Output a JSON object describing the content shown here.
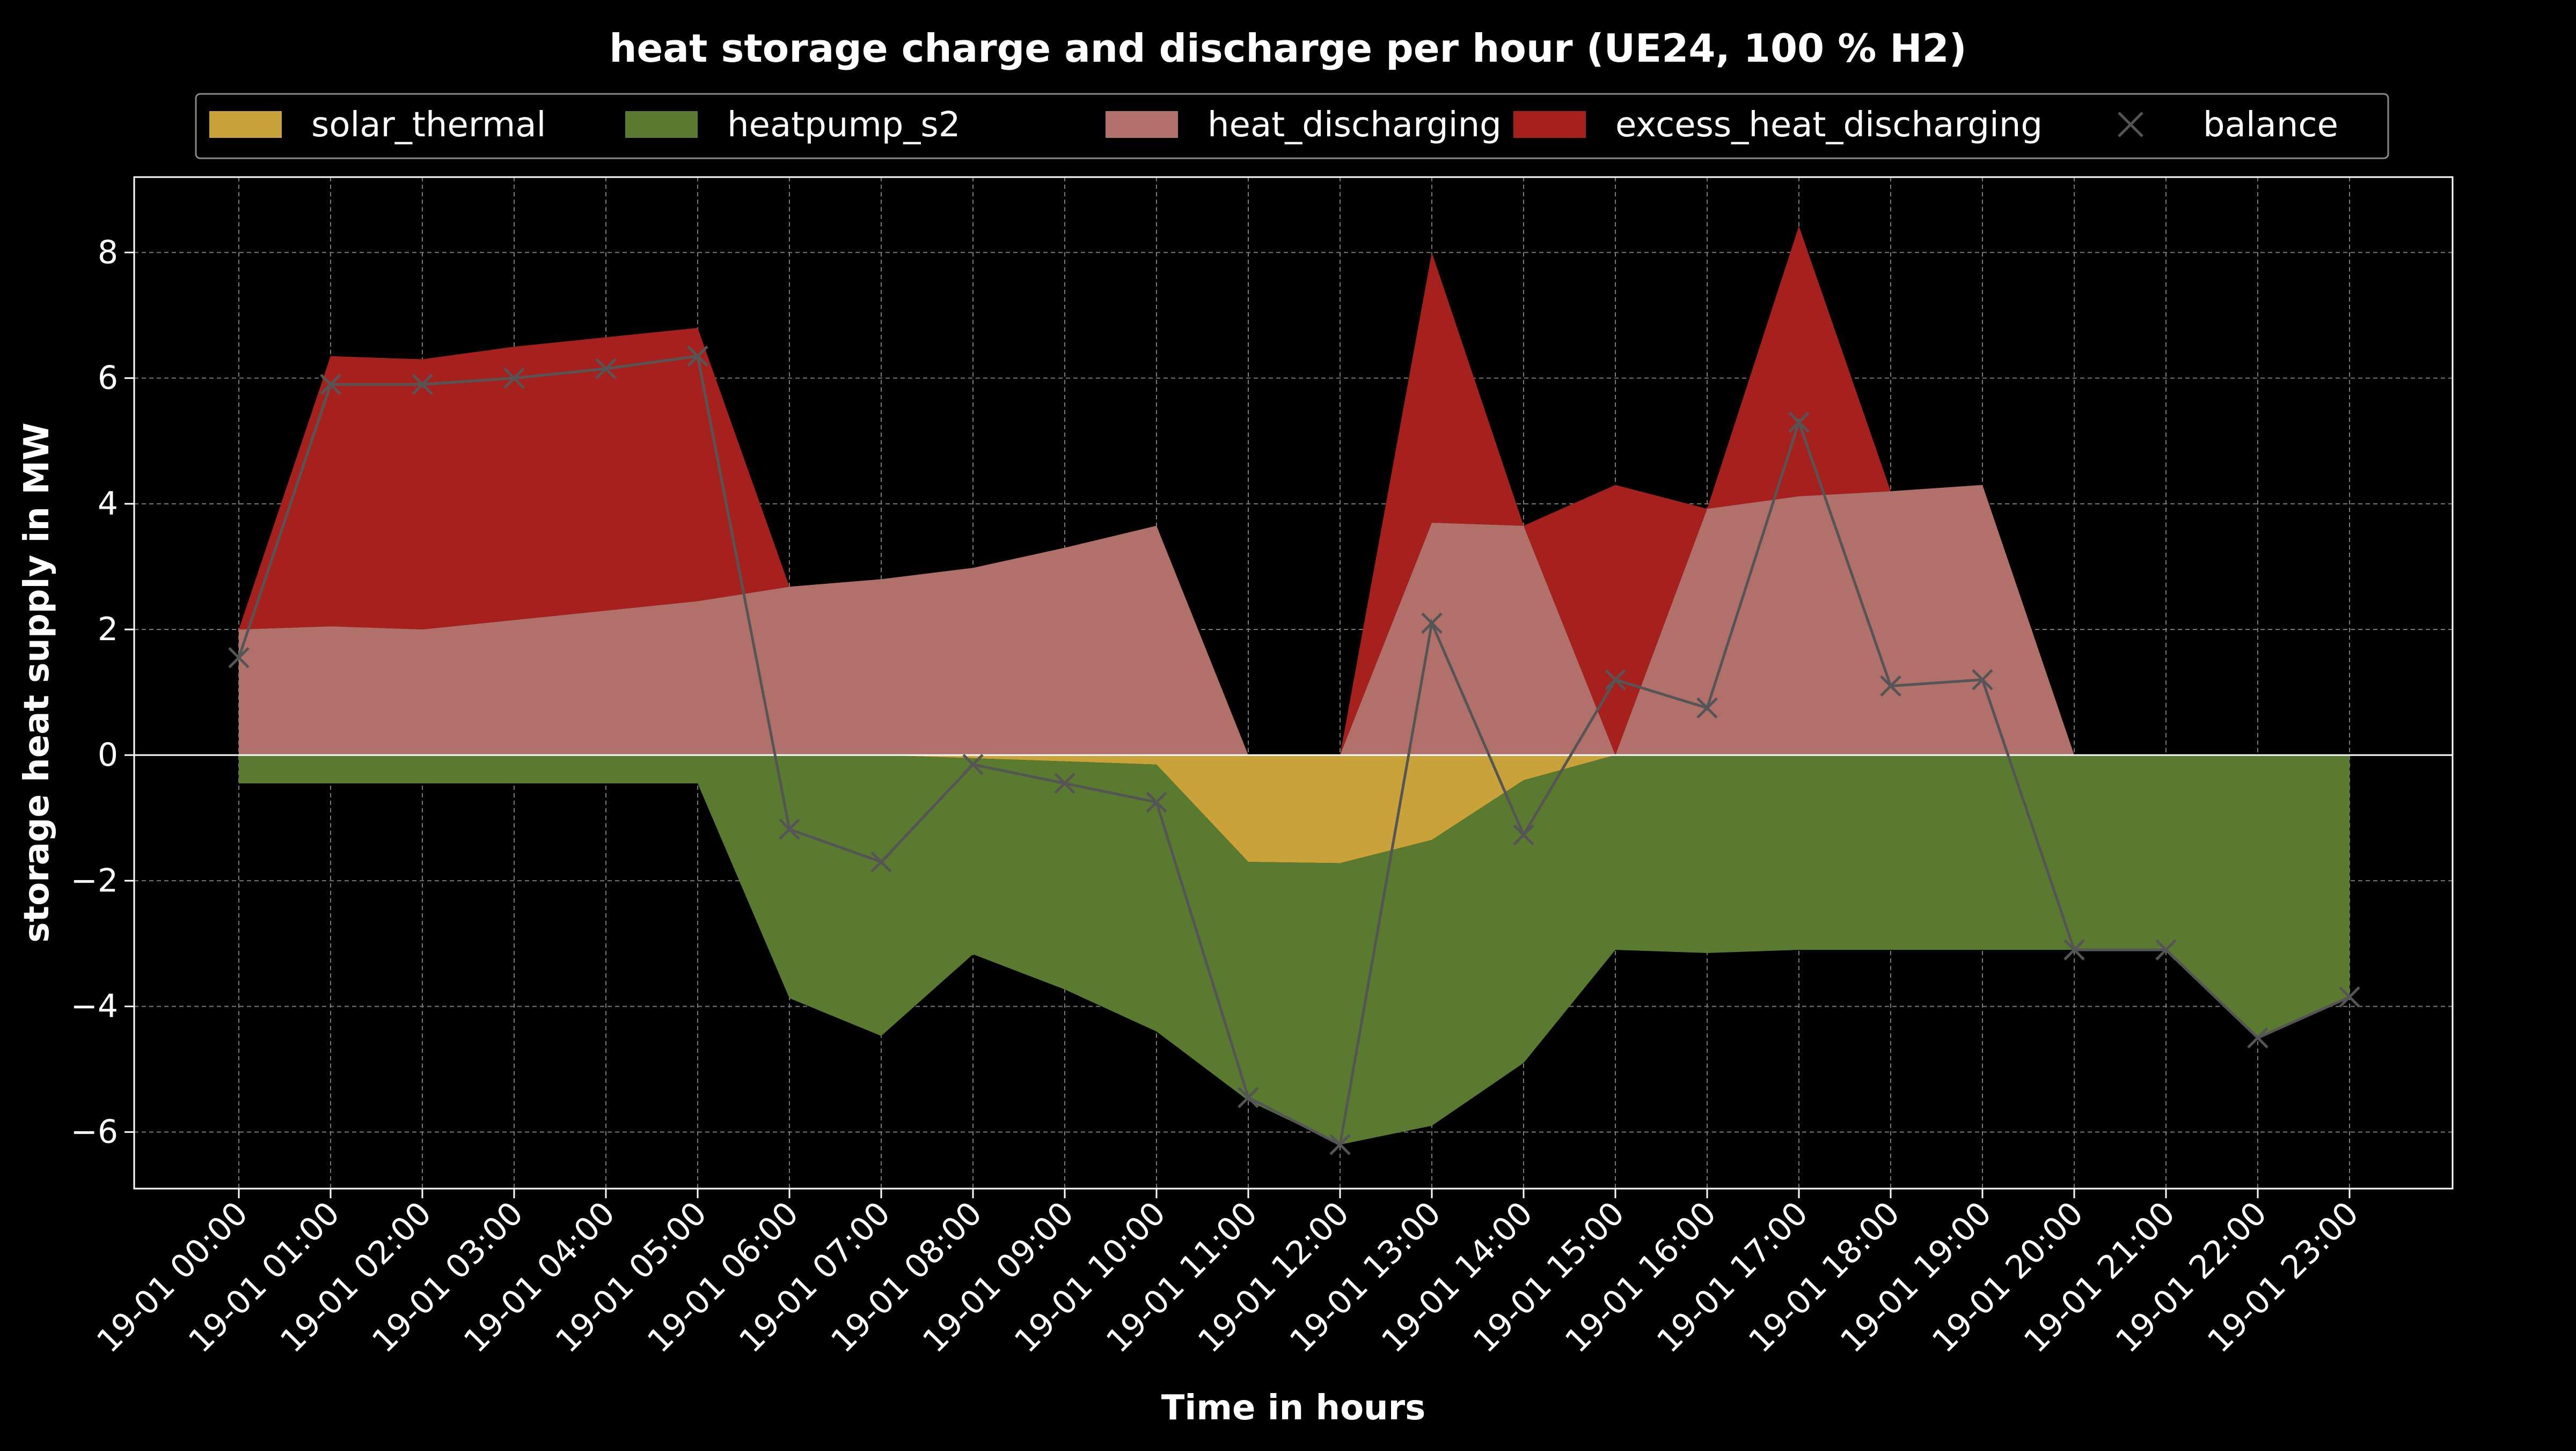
{
  "chart_data": {
    "type": "area",
    "title": "heat storage charge and discharge per hour (UE24, 100 % H2)",
    "xlabel": "Time in hours",
    "ylabel": "storage heat supply in MW",
    "ylim": [
      -6.9,
      9.2
    ],
    "yticks": [
      -6,
      -4,
      -2,
      0,
      2,
      4,
      6,
      8
    ],
    "ytick_labels": [
      "−6",
      "−4",
      "−2",
      "0",
      "2",
      "4",
      "6",
      "8"
    ],
    "grid": true,
    "legend_position": "top",
    "categories": [
      "19-01 00:00",
      "19-01 01:00",
      "19-01 02:00",
      "19-01 03:00",
      "19-01 04:00",
      "19-01 05:00",
      "19-01 06:00",
      "19-01 07:00",
      "19-01 08:00",
      "19-01 09:00",
      "19-01 10:00",
      "19-01 11:00",
      "19-01 12:00",
      "19-01 13:00",
      "19-01 14:00",
      "19-01 15:00",
      "19-01 16:00",
      "19-01 17:00",
      "19-01 18:00",
      "19-01 19:00",
      "19-01 20:00",
      "19-01 21:00",
      "19-01 22:00",
      "19-01 23:00"
    ],
    "series": [
      {
        "name": "solar_thermal",
        "stack": "negative",
        "color": "#c9a23a",
        "values": [
          0,
          0,
          0,
          0,
          0,
          0,
          0,
          0,
          -0.05,
          -0.1,
          -0.15,
          -1.7,
          -1.72,
          -1.35,
          -0.4,
          0,
          0,
          0,
          0,
          0,
          0,
          0,
          0,
          0
        ]
      },
      {
        "name": "heatpump_s2",
        "stack": "negative",
        "color": "#5a7a30",
        "values": [
          -0.45,
          -0.45,
          -0.45,
          -0.45,
          -0.45,
          -0.45,
          -3.87,
          -4.47,
          -3.12,
          -3.63,
          -4.25,
          -3.8,
          -4.48,
          -4.55,
          -4.5,
          -3.1,
          -3.15,
          -3.1,
          -3.1,
          -3.1,
          -3.1,
          -3.1,
          -4.5,
          -3.85
        ]
      },
      {
        "name": "heat_discharging",
        "stack": "positive",
        "color": "#b1706a",
        "values": [
          2.0,
          2.05,
          2.0,
          2.15,
          2.3,
          2.45,
          2.68,
          2.8,
          2.98,
          3.3,
          3.65,
          0,
          0,
          3.7,
          3.65,
          0,
          3.92,
          4.12,
          4.2,
          4.3,
          0,
          0,
          0,
          0
        ]
      },
      {
        "name": "excess_heat_discharging",
        "stack": "positive",
        "color": "#a6211e",
        "values": [
          0,
          4.3,
          4.3,
          4.35,
          4.35,
          4.35,
          0,
          0,
          0,
          0,
          0,
          0,
          0,
          4.3,
          0,
          4.3,
          0,
          4.3,
          0,
          0,
          0,
          0,
          0,
          0
        ]
      },
      {
        "name": "balance",
        "type": "line",
        "marker": "x",
        "color": "#555555",
        "values": [
          1.55,
          5.9,
          5.9,
          6.0,
          6.15,
          6.35,
          -1.18,
          -1.7,
          -0.15,
          -0.45,
          -0.75,
          -5.45,
          -6.2,
          2.1,
          -1.27,
          1.2,
          0.75,
          5.3,
          1.1,
          1.2,
          -3.1,
          -3.1,
          -4.5,
          -3.85
        ]
      }
    ]
  }
}
